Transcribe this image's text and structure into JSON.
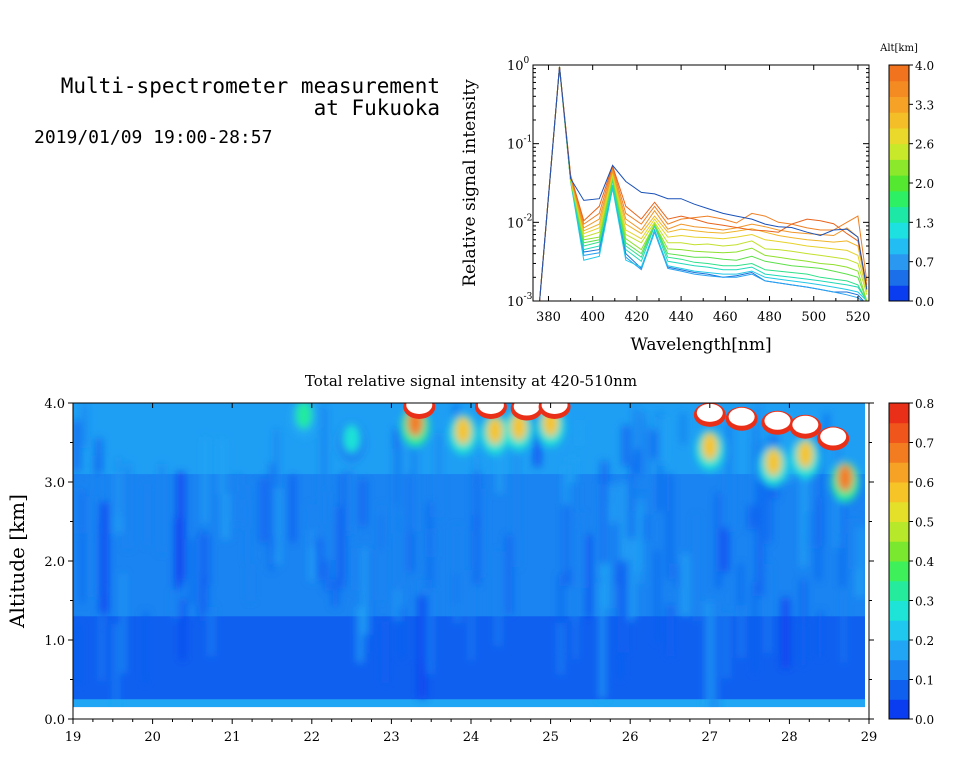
{
  "header": {
    "title_line1": "Multi-spectrometer measurement",
    "title_line2": "at Fukuoka",
    "date_range": "2019/01/09 19:00-28:57"
  },
  "chart_data": [
    {
      "type": "line",
      "name": "spectra",
      "xlabel": "Wavelength[nm]",
      "ylabel": "Relative signal intensity",
      "xlim": [
        373,
        525
      ],
      "ylim": [
        0.001,
        1
      ],
      "log_y": true,
      "x_ticks": [
        380,
        400,
        420,
        440,
        460,
        480,
        500,
        520
      ],
      "y_ticks": [
        {
          "value": 0.001,
          "base": "10",
          "exp": "-3"
        },
        {
          "value": 0.01,
          "base": "10",
          "exp": "-2"
        },
        {
          "value": 0.1,
          "base": "10",
          "exp": "-1"
        },
        {
          "value": 1,
          "base": "10",
          "exp": "0"
        }
      ],
      "x": [
        376,
        385,
        390,
        396,
        403,
        409,
        415,
        422,
        428,
        434,
        440,
        446,
        452,
        459,
        465,
        472,
        478,
        484,
        490,
        497,
        503,
        509,
        515,
        520,
        524
      ],
      "series": [
        {
          "alt": 0.0,
          "color": "#1b6fd8",
          "values": [
            0.001,
            0.95,
            0.035,
            0.0042,
            0.0045,
            0.03,
            0.004,
            0.0026,
            0.008,
            0.0027,
            0.0025,
            0.0023,
            0.0022,
            0.002,
            0.0021,
            0.0023,
            0.0018,
            0.0017,
            0.0016,
            0.0015,
            0.0014,
            0.0013,
            0.0013,
            0.0012,
            0.0009
          ]
        },
        {
          "alt": 0.3,
          "color": "#27a2f2",
          "values": [
            0.001,
            0.95,
            0.034,
            0.0038,
            0.0041,
            0.028,
            0.0036,
            0.0025,
            0.0075,
            0.0026,
            0.0024,
            0.0022,
            0.0021,
            0.002,
            0.002,
            0.0022,
            0.0018,
            0.0017,
            0.0016,
            0.0015,
            0.0014,
            0.0013,
            0.0012,
            0.0011,
            0.0009
          ]
        },
        {
          "alt": 0.7,
          "color": "#22c7e6",
          "values": [
            0.001,
            0.95,
            0.033,
            0.0033,
            0.0037,
            0.027,
            0.0033,
            0.0027,
            0.0078,
            0.0028,
            0.0026,
            0.0024,
            0.0023,
            0.0022,
            0.0022,
            0.0024,
            0.002,
            0.0019,
            0.0018,
            0.0017,
            0.0016,
            0.0015,
            0.0014,
            0.0013,
            0.001
          ]
        },
        {
          "alt": 1.0,
          "color": "#1fd9b9",
          "values": [
            0.001,
            0.95,
            0.033,
            0.0045,
            0.005,
            0.03,
            0.0045,
            0.0032,
            0.009,
            0.0032,
            0.003,
            0.0028,
            0.0027,
            0.0025,
            0.0025,
            0.0027,
            0.0022,
            0.0021,
            0.002,
            0.0019,
            0.0018,
            0.0017,
            0.0016,
            0.0015,
            0.001
          ]
        },
        {
          "alt": 1.3,
          "color": "#2fe08a",
          "values": [
            0.001,
            0.95,
            0.034,
            0.005,
            0.0056,
            0.034,
            0.005,
            0.0036,
            0.0095,
            0.0036,
            0.0034,
            0.0031,
            0.003,
            0.0028,
            0.0028,
            0.003,
            0.0025,
            0.0024,
            0.0023,
            0.0022,
            0.002,
            0.0019,
            0.0018,
            0.0016,
            0.001
          ]
        },
        {
          "alt": 1.7,
          "color": "#5ce04a",
          "values": [
            0.001,
            0.95,
            0.034,
            0.0055,
            0.006,
            0.036,
            0.0055,
            0.004,
            0.0095,
            0.004,
            0.0038,
            0.0036,
            0.0036,
            0.0034,
            0.0033,
            0.0037,
            0.0032,
            0.003,
            0.0028,
            0.0027,
            0.0026,
            0.0024,
            0.0022,
            0.002,
            0.001
          ]
        },
        {
          "alt": 2.0,
          "color": "#8fe02c",
          "values": [
            0.001,
            0.95,
            0.034,
            0.006,
            0.0065,
            0.038,
            0.0062,
            0.0045,
            0.0095,
            0.0046,
            0.0045,
            0.0043,
            0.0042,
            0.0041,
            0.0042,
            0.0047,
            0.0038,
            0.0036,
            0.0034,
            0.0032,
            0.003,
            0.0029,
            0.0027,
            0.0024,
            0.001
          ]
        },
        {
          "alt": 2.3,
          "color": "#c3e02c",
          "values": [
            0.001,
            0.95,
            0.035,
            0.0065,
            0.0075,
            0.04,
            0.007,
            0.0055,
            0.01,
            0.0055,
            0.0055,
            0.0052,
            0.0053,
            0.005,
            0.0052,
            0.0058,
            0.0046,
            0.0045,
            0.0043,
            0.004,
            0.0038,
            0.0036,
            0.0034,
            0.003,
            0.0012
          ]
        },
        {
          "alt": 2.6,
          "color": "#e6d22a",
          "values": [
            0.001,
            0.95,
            0.036,
            0.0072,
            0.0085,
            0.042,
            0.008,
            0.0062,
            0.011,
            0.0065,
            0.0068,
            0.0065,
            0.0064,
            0.0062,
            0.0065,
            0.007,
            0.006,
            0.0057,
            0.0054,
            0.005,
            0.0048,
            0.0046,
            0.0044,
            0.0038,
            0.0013
          ]
        },
        {
          "alt": 3.0,
          "color": "#f0b429",
          "values": [
            0.001,
            0.95,
            0.037,
            0.0078,
            0.0095,
            0.044,
            0.0095,
            0.0072,
            0.012,
            0.0075,
            0.0082,
            0.0078,
            0.0075,
            0.0073,
            0.0077,
            0.0083,
            0.0075,
            0.0068,
            0.0064,
            0.006,
            0.0058,
            0.0056,
            0.0058,
            0.005,
            0.0014
          ]
        },
        {
          "alt": 3.3,
          "color": "#f19628",
          "values": [
            0.001,
            0.95,
            0.038,
            0.0085,
            0.011,
            0.046,
            0.011,
            0.008,
            0.014,
            0.0082,
            0.0095,
            0.0088,
            0.0085,
            0.008,
            0.0085,
            0.0095,
            0.0088,
            0.008,
            0.0075,
            0.0072,
            0.007,
            0.0068,
            0.0085,
            0.0065,
            0.0015
          ]
        },
        {
          "alt": 3.7,
          "color": "#ef7f22",
          "values": [
            0.001,
            0.95,
            0.039,
            0.0095,
            0.013,
            0.05,
            0.013,
            0.0095,
            0.016,
            0.0095,
            0.011,
            0.0115,
            0.012,
            0.011,
            0.0098,
            0.013,
            0.012,
            0.01,
            0.0095,
            0.0085,
            0.008,
            0.008,
            0.01,
            0.012,
            0.0018
          ]
        },
        {
          "alt": 4.0,
          "color": "#e8641d",
          "values": [
            0.001,
            0.95,
            0.04,
            0.0105,
            0.016,
            0.052,
            0.016,
            0.011,
            0.018,
            0.011,
            0.012,
            0.011,
            0.0098,
            0.0092,
            0.0086,
            0.008,
            0.0078,
            0.0075,
            0.0095,
            0.011,
            0.0105,
            0.0096,
            0.0072,
            0.0058,
            0.0016
          ]
        },
        {
          "alt": 4.0,
          "color": "#1a52b8",
          "values": [
            0.001,
            0.95,
            0.036,
            0.019,
            0.02,
            0.053,
            0.033,
            0.024,
            0.023,
            0.02,
            0.02,
            0.017,
            0.015,
            0.013,
            0.012,
            0.011,
            0.0095,
            0.0088,
            0.0086,
            0.0075,
            0.0068,
            0.008,
            0.0082,
            0.0065,
            0.0014
          ]
        }
      ],
      "colorbar": {
        "label": "Alt[km]",
        "tick_labels": [
          "0.0",
          "0.7",
          "1.3",
          "2.0",
          "2.6",
          "3.3",
          "4.0"
        ],
        "colors": [
          "#0a3df0",
          "#1b6fe8",
          "#2a98f0",
          "#22bdf2",
          "#1de0e0",
          "#1ee8a6",
          "#2ef064",
          "#55e830",
          "#8ce82a",
          "#c8e82a",
          "#ead82a",
          "#f4be28",
          "#f6a226",
          "#f48a22",
          "#f2731e"
        ]
      }
    },
    {
      "type": "heatmap",
      "name": "time-height",
      "title": "Total relative signal intensity at 420-510nm",
      "ylabel": "Altitude [km]",
      "xlim": [
        19,
        29
      ],
      "ylim": [
        0,
        4
      ],
      "x_tick_labels": [
        "19",
        "20",
        "21",
        "22",
        "23",
        "24",
        "25",
        "26",
        "27",
        "28",
        "29"
      ],
      "y_tick_labels": [
        "0.0",
        "1.0",
        "2.0",
        "3.0",
        "4.0"
      ],
      "data_end_x": 28.95,
      "data_min_y": 0.15,
      "background_value": 0.08,
      "colorbar": {
        "tick_labels": [
          "0.0",
          "0.1",
          "0.2",
          "0.3",
          "0.4",
          "0.5",
          "0.6",
          "0.7",
          "0.8"
        ],
        "range": [
          0,
          0.8
        ],
        "colors": [
          "#0a3df0",
          "#1060f0",
          "#1a84f2",
          "#20a6f4",
          "#1ec8ee",
          "#1de4d6",
          "#24ec9c",
          "#3ef05a",
          "#7ae82e",
          "#b8e82a",
          "#e4e02a",
          "#f6c426",
          "#f6a224",
          "#f47c20",
          "#f0561c",
          "#ea2f18"
        ]
      },
      "high_signal_regions": [
        {
          "x": 21.9,
          "y": 3.8,
          "value": 0.35
        },
        {
          "x": 22.5,
          "y": 3.5,
          "value": 0.25
        },
        {
          "x": 23.3,
          "y": 3.7,
          "value": 0.7
        },
        {
          "x": 23.9,
          "y": 3.6,
          "value": 0.55
        },
        {
          "x": 24.3,
          "y": 3.6,
          "value": 0.6
        },
        {
          "x": 24.6,
          "y": 3.65,
          "value": 0.55
        },
        {
          "x": 25.0,
          "y": 3.7,
          "value": 0.6
        },
        {
          "x": 27.0,
          "y": 3.4,
          "value": 0.6
        },
        {
          "x": 27.8,
          "y": 3.2,
          "value": 0.55
        },
        {
          "x": 28.2,
          "y": 3.3,
          "value": 0.6
        },
        {
          "x": 28.7,
          "y": 3.0,
          "value": 0.7
        }
      ],
      "saturated_regions": [
        {
          "x": 23.35,
          "y": 3.95
        },
        {
          "x": 24.25,
          "y": 3.95
        },
        {
          "x": 24.7,
          "y": 3.93
        },
        {
          "x": 25.05,
          "y": 3.95
        },
        {
          "x": 27.0,
          "y": 3.85
        },
        {
          "x": 27.4,
          "y": 3.8
        },
        {
          "x": 27.85,
          "y": 3.75
        },
        {
          "x": 28.2,
          "y": 3.7
        },
        {
          "x": 28.55,
          "y": 3.55
        }
      ]
    }
  ]
}
